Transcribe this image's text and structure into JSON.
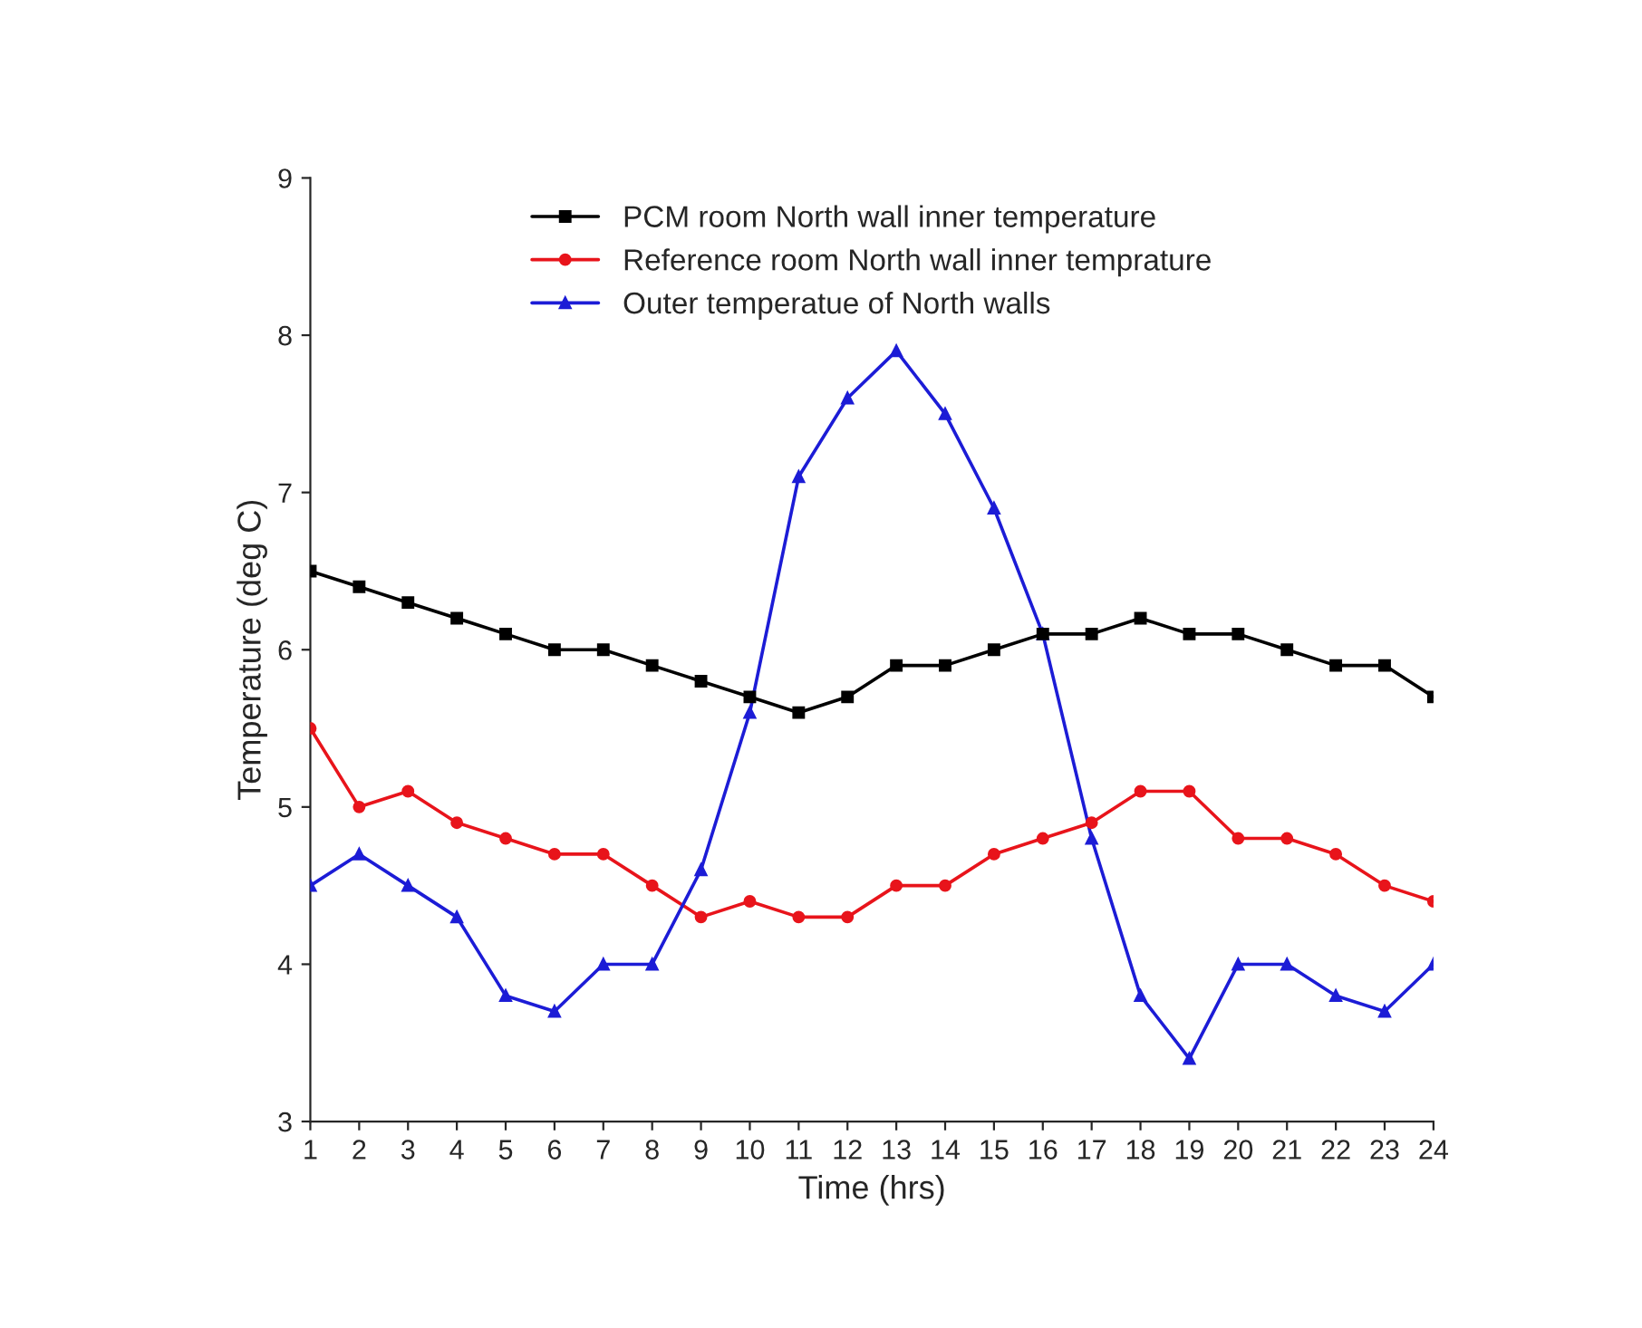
{
  "chart_data": {
    "type": "line",
    "xlabel": "Time (hrs)",
    "ylabel": "Temperature (deg C)",
    "x": [
      1,
      2,
      3,
      4,
      5,
      6,
      7,
      8,
      9,
      10,
      11,
      12,
      13,
      14,
      15,
      16,
      17,
      18,
      19,
      20,
      21,
      22,
      23,
      24
    ],
    "xlim": [
      1,
      24
    ],
    "xticks": [
      1,
      2,
      3,
      4,
      5,
      6,
      7,
      8,
      9,
      10,
      11,
      12,
      13,
      14,
      15,
      16,
      17,
      18,
      19,
      20,
      21,
      22,
      23,
      24
    ],
    "ylim": [
      3,
      9
    ],
    "yticks": [
      3,
      4,
      5,
      6,
      7,
      8,
      9
    ],
    "grid": false,
    "legend": "top",
    "series": [
      {
        "name": "PCM room North wall inner temperature",
        "color": "#000000",
        "marker": "square",
        "values": [
          6.5,
          6.4,
          6.3,
          6.2,
          6.1,
          6.0,
          6.0,
          5.9,
          5.8,
          5.7,
          5.6,
          5.7,
          5.9,
          5.9,
          6.0,
          6.1,
          6.1,
          6.2,
          6.1,
          6.1,
          6.0,
          5.9,
          5.9,
          5.7
        ]
      },
      {
        "name": "Reference room North wall inner temprature",
        "color": "#e8141b",
        "marker": "circle",
        "values": [
          5.5,
          5.0,
          5.1,
          4.9,
          4.8,
          4.7,
          4.7,
          4.5,
          4.3,
          4.4,
          4.3,
          4.3,
          4.5,
          4.5,
          4.7,
          4.8,
          4.9,
          5.1,
          5.1,
          4.8,
          4.8,
          4.7,
          4.5,
          4.4
        ]
      },
      {
        "name": "Outer temperatue of North walls",
        "color": "#1c1cd6",
        "marker": "triangle",
        "values": [
          4.5,
          4.7,
          4.5,
          4.3,
          3.8,
          3.7,
          4.0,
          4.0,
          4.6,
          5.6,
          7.1,
          7.6,
          7.9,
          7.5,
          6.9,
          6.1,
          4.8,
          3.8,
          3.4,
          4.0,
          4.0,
          3.8,
          3.7,
          4.0
        ]
      }
    ]
  }
}
